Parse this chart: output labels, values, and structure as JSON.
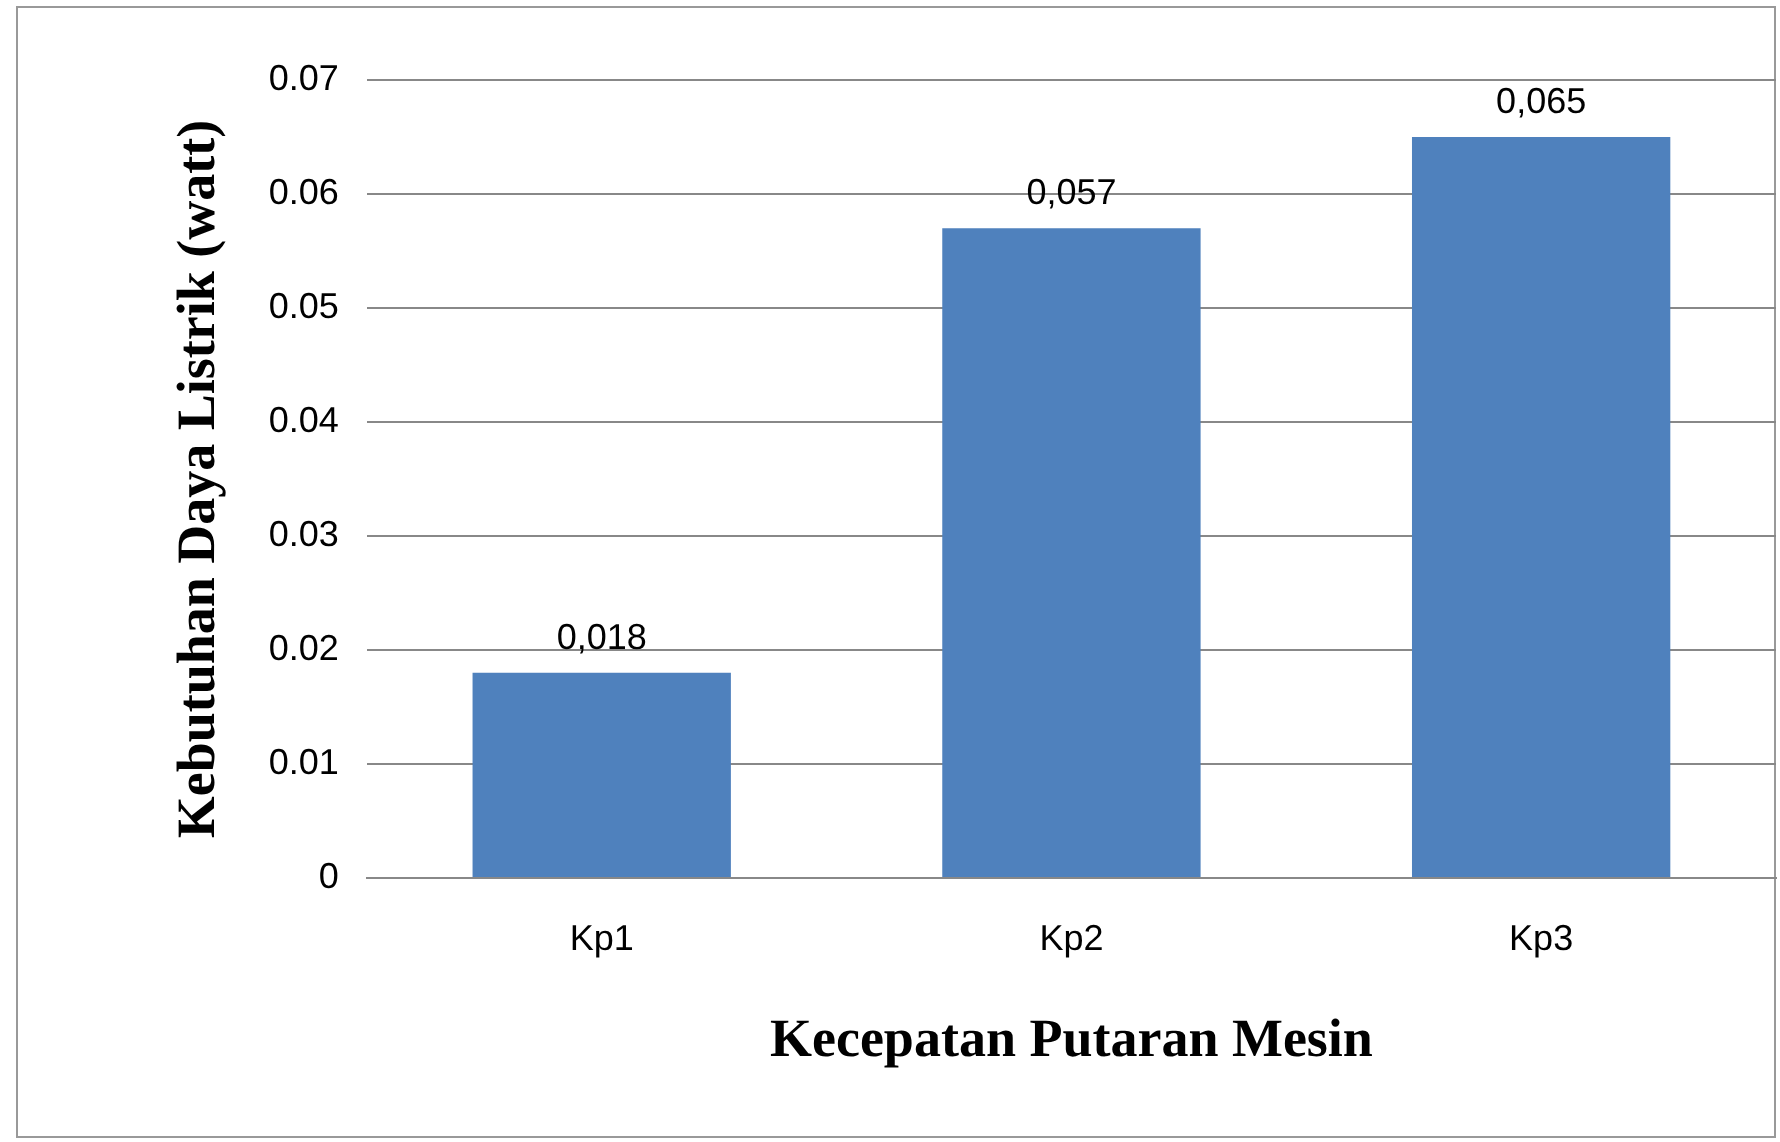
{
  "chart_data": {
    "type": "bar",
    "xlabel": "Kecepatan Putaran Mesin",
    "ylabel": "Kebutuhan Daya Listrik (watt)",
    "categories": [
      "Kp1",
      "Kp2",
      "Kp3"
    ],
    "values": [
      0.018,
      0.057,
      0.065
    ],
    "value_labels": [
      "0,018",
      "0,057",
      "0,065"
    ],
    "color": "#4f81bd",
    "ylim": [
      0,
      0.07
    ],
    "yticks": [
      0,
      0.01,
      0.02,
      0.03,
      0.04,
      0.05,
      0.06,
      0.07
    ],
    "grid": "y",
    "legend": false
  }
}
